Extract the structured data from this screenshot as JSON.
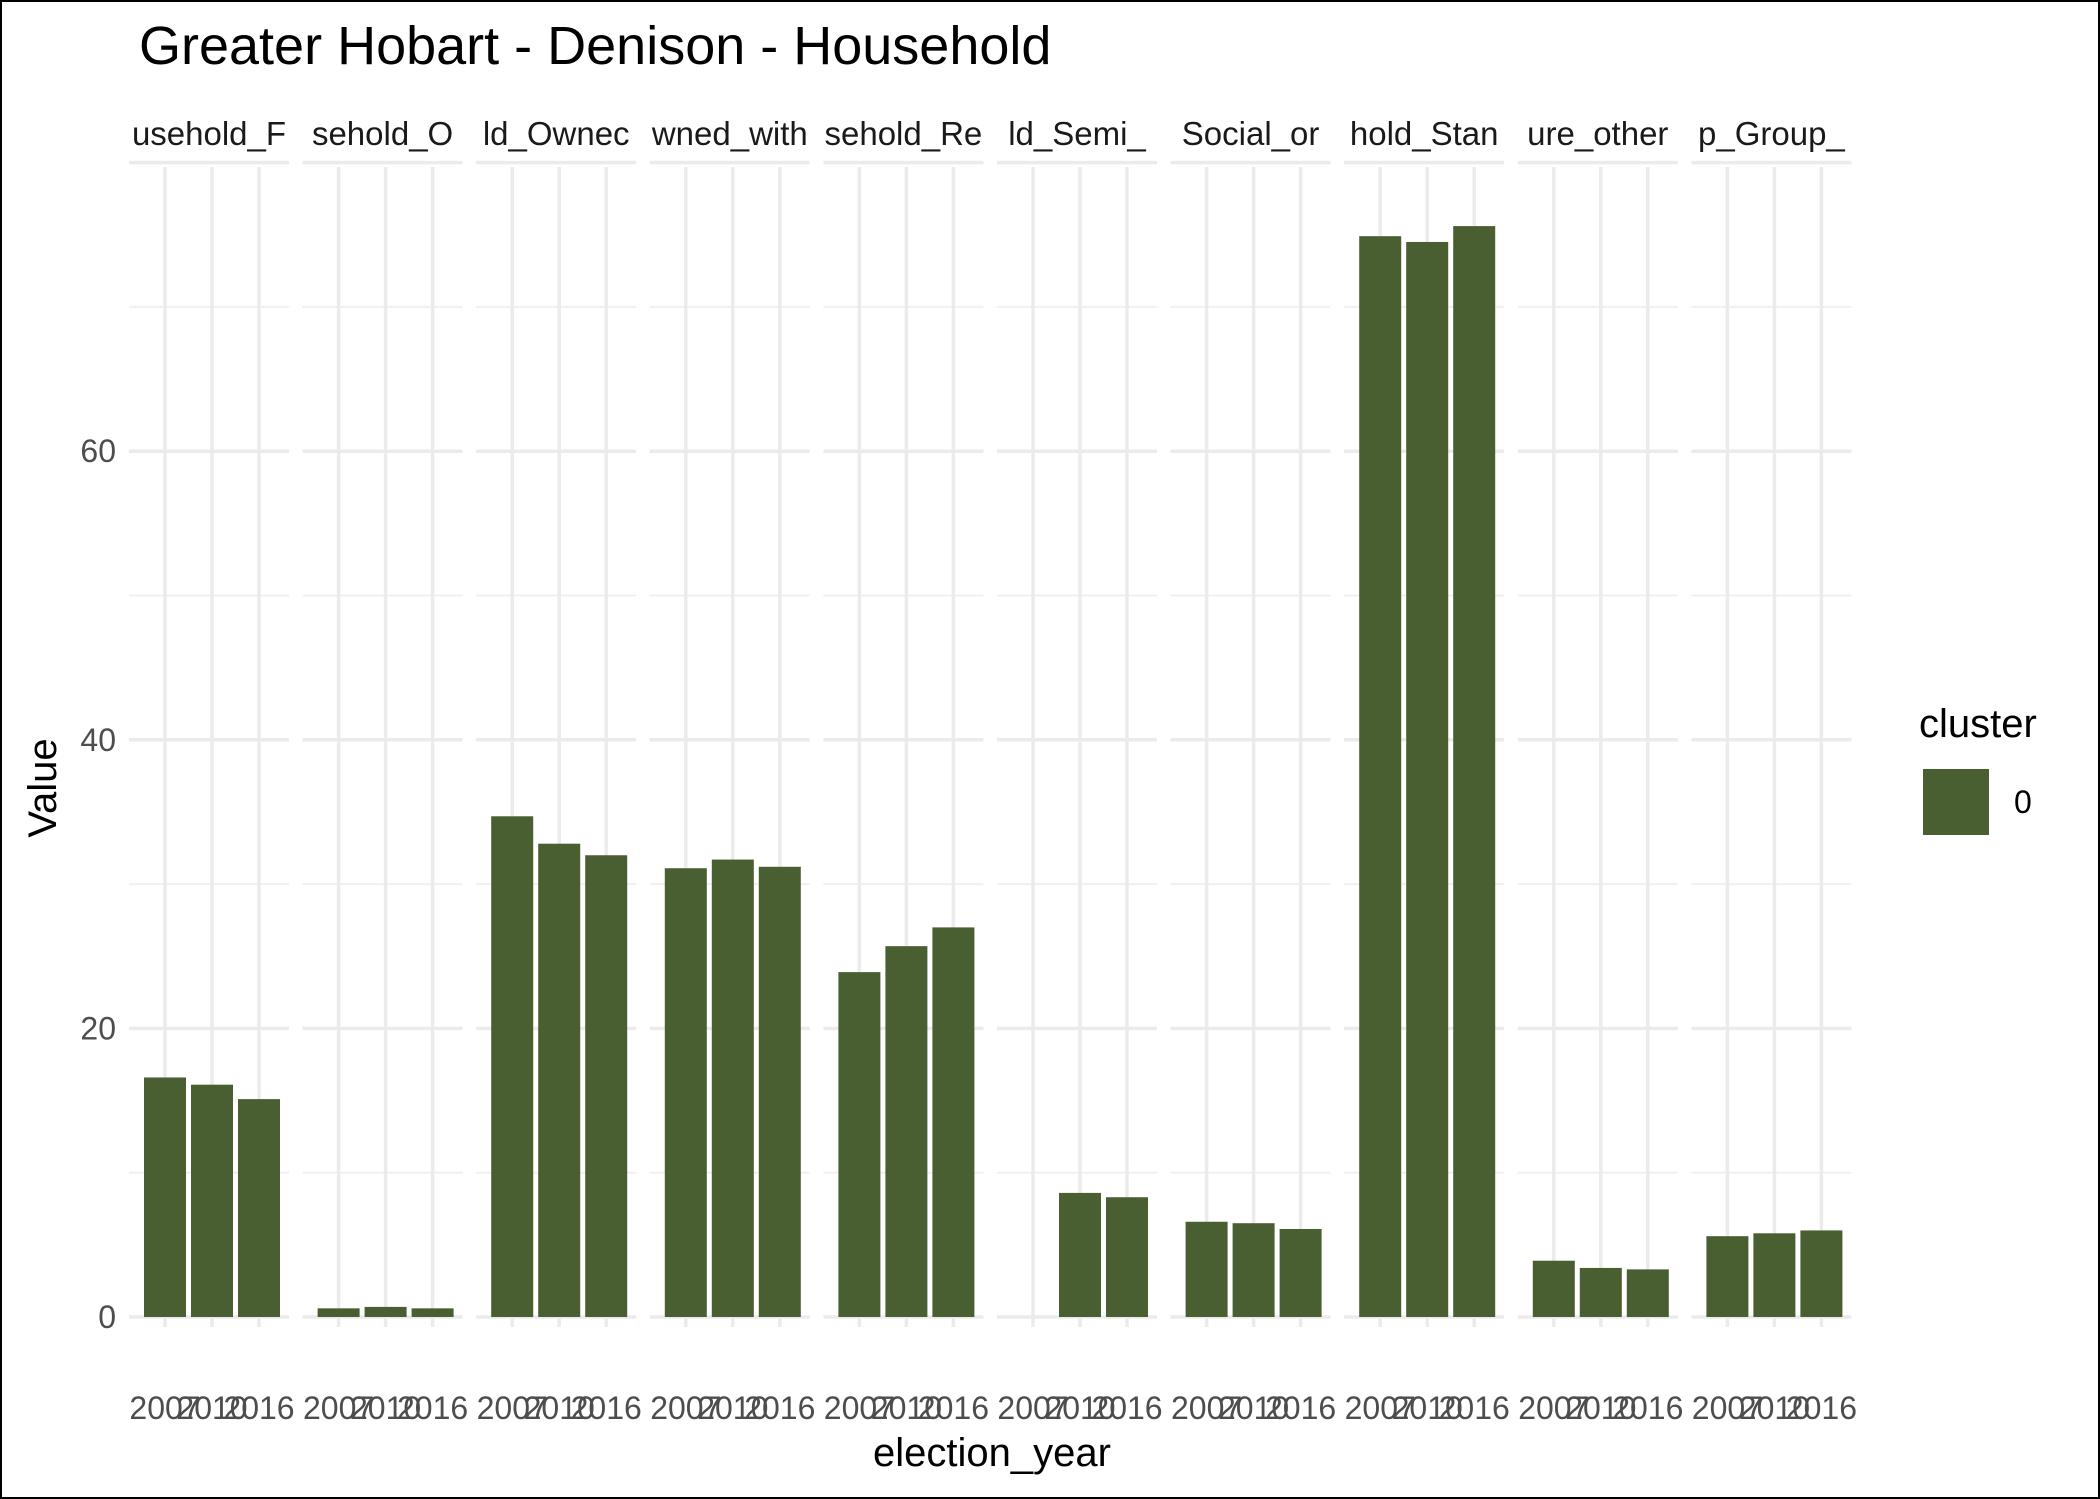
{
  "chart_data": {
    "type": "bar",
    "title": "Greater Hobart - Denison - Household",
    "xlabel": "election_year",
    "ylabel": "Value",
    "ylim": [
      0,
      80
    ],
    "yticks": [
      0,
      20,
      40,
      60
    ],
    "grid": true,
    "x": [
      "2007",
      "2010",
      "2016"
    ],
    "facets": [
      {
        "label": "usehold_F",
        "values": [
          16.6,
          16.1,
          15.1
        ]
      },
      {
        "label": "sehold_O",
        "values": [
          0.6,
          0.7,
          0.6
        ]
      },
      {
        "label": "ld_Ownec",
        "values": [
          34.7,
          32.8,
          32.0
        ]
      },
      {
        "label": "wned_with",
        "values": [
          31.1,
          31.7,
          31.2
        ]
      },
      {
        "label": "sehold_Re",
        "values": [
          23.9,
          25.7,
          27.0
        ]
      },
      {
        "label": "ld_Semi_",
        "values": [
          null,
          8.6,
          8.3
        ]
      },
      {
        "label": "Social_or",
        "values": [
          6.6,
          6.5,
          6.1
        ]
      },
      {
        "label": "hold_Stan",
        "values": [
          74.9,
          74.5,
          75.6
        ]
      },
      {
        "label": "ure_other",
        "values": [
          3.9,
          3.4,
          3.3
        ]
      },
      {
        "label": "p_Group_",
        "values": [
          5.6,
          5.8,
          6.0
        ]
      }
    ],
    "series": [
      {
        "name": "0",
        "color": "#4a5f31"
      }
    ],
    "legend": {
      "title": "cluster",
      "position": "right"
    }
  }
}
